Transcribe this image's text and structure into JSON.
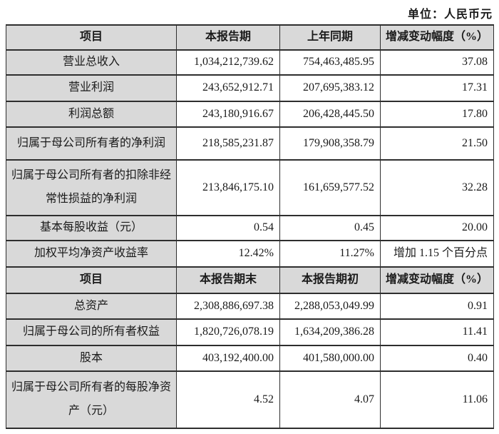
{
  "page": {
    "unit_label": "单位：人民币元"
  },
  "colors": {
    "header_bg": "#d9d9d9",
    "border": "#2e2e2e",
    "text": "#1a1a1a"
  },
  "table": {
    "section1": {
      "header": [
        "项目",
        "本报告期",
        "上年同期",
        "增减变动幅度（%）"
      ],
      "rows": [
        {
          "label": "营业总收入",
          "current": "1,034,212,739.62",
          "prior": "754,463,485.95",
          "change": "37.08"
        },
        {
          "label": "营业利润",
          "current": "243,652,912.71",
          "prior": "207,695,383.12",
          "change": "17.31"
        },
        {
          "label": "利润总额",
          "current": "243,180,916.67",
          "prior": "206,428,445.50",
          "change": "17.80"
        },
        {
          "label": "归属于母公司所有者的净利润",
          "current": "218,585,231.87",
          "prior": "179,908,358.79",
          "change": "21.50"
        },
        {
          "label": "归属于母公司所有者的扣除非经常性损益的净利润",
          "current": "213,846,175.10",
          "prior": "161,659,577.52",
          "change": "32.28"
        },
        {
          "label": "基本每股收益（元）",
          "current": "0.54",
          "prior": "0.45",
          "change": "20.00"
        },
        {
          "label": "加权平均净资产收益率",
          "current": "12.42%",
          "prior": "11.27%",
          "change": "增加 1.15 个百分点"
        }
      ]
    },
    "section2": {
      "header": [
        "项目",
        "本报告期末",
        "本报告期初",
        "增减变动幅度（%）"
      ],
      "rows": [
        {
          "label": "总资产",
          "current": "2,308,886,697.38",
          "prior": "2,288,053,049.99",
          "change": "0.91"
        },
        {
          "label": "归属于母公司的所有者权益",
          "current": "1,820,726,078.19",
          "prior": "1,634,209,386.28",
          "change": "11.41"
        },
        {
          "label": "股本",
          "current": "403,192,400.00",
          "prior": "401,580,000.00",
          "change": "0.40"
        },
        {
          "label": "归属于母公司所有者的每股净资产（元）",
          "current": "4.52",
          "prior": "4.07",
          "change": "11.06"
        }
      ]
    }
  }
}
